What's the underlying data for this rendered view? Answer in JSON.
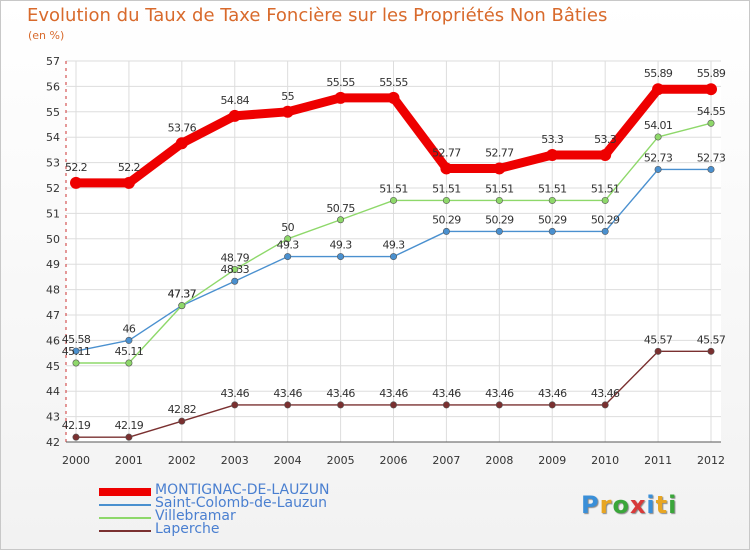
{
  "title": "Evolution du Taux de Taxe Foncière sur les Propriétés Non Bâties",
  "subtitle": "(en %)",
  "logo": {
    "letters": [
      "P",
      "r",
      "o",
      "x",
      "i",
      "t",
      "i"
    ],
    "colors": [
      "#3a8fd8",
      "#e8a623",
      "#3aa63a",
      "#d83a3a",
      "#3a8fd8",
      "#e8a623",
      "#3aa63a"
    ]
  },
  "chart_data": {
    "type": "line",
    "x": [
      "2000",
      "2001",
      "2002",
      "2003",
      "2004",
      "2005",
      "2006",
      "2007",
      "2008",
      "2009",
      "2010",
      "2011",
      "2012"
    ],
    "ylim": [
      42,
      57
    ],
    "yticks": [
      "42",
      "43",
      "44",
      "45",
      "46",
      "47",
      "48",
      "49",
      "50",
      "51",
      "52",
      "53",
      "54",
      "55",
      "56",
      "57"
    ],
    "grid": true,
    "legend_position": "bottom-left",
    "series": [
      {
        "name": "MONTIGNAC-DE-LAUZUN",
        "color": "#ee0000",
        "values": [
          52.2,
          52.2,
          53.76,
          54.84,
          55,
          55.55,
          55.55,
          52.77,
          52.77,
          53.3,
          53.3,
          55.89,
          55.89
        ],
        "labels": [
          "52.2",
          "52.2",
          "53.76",
          "54.84",
          "55",
          "55.55",
          "55.55",
          "52.77",
          "52.77",
          "53.3",
          "53.3",
          "55.89",
          "55.89"
        ]
      },
      {
        "name": "Saint-Colomb-de-Lauzun",
        "color": "#4a90cf",
        "values": [
          45.58,
          46,
          47.37,
          48.33,
          49.3,
          49.3,
          49.3,
          50.29,
          50.29,
          50.29,
          50.29,
          52.73,
          52.73
        ],
        "labels": [
          "45.58",
          "46",
          "47.37",
          "48.33",
          "49.3",
          "49.3",
          "49.3",
          "50.29",
          "50.29",
          "50.29",
          "50.29",
          "52.73",
          "52.73"
        ]
      },
      {
        "name": "Villebramar",
        "color": "#8ed86a",
        "values": [
          45.11,
          45.11,
          47.37,
          48.79,
          50,
          50.75,
          51.51,
          51.51,
          51.51,
          51.51,
          51.51,
          54.01,
          54.55
        ],
        "labels": [
          "45.11",
          "45.11",
          "47.37",
          "48.79",
          "50",
          "50.75",
          "51.51",
          "51.51",
          "51.51",
          "51.51",
          "51.51",
          "54.01",
          "54.55"
        ]
      },
      {
        "name": "Laperche",
        "color": "#7a3030",
        "values": [
          42.19,
          42.19,
          42.82,
          43.46,
          43.46,
          43.46,
          43.46,
          43.46,
          43.46,
          43.46,
          43.46,
          45.57,
          45.57
        ],
        "labels": [
          "42.19",
          "42.19",
          "42.82",
          "43.46",
          "43.46",
          "43.46",
          "43.46",
          "43.46",
          "43.46",
          "43.46",
          "43.46",
          "45.57",
          "45.57"
        ]
      }
    ]
  }
}
